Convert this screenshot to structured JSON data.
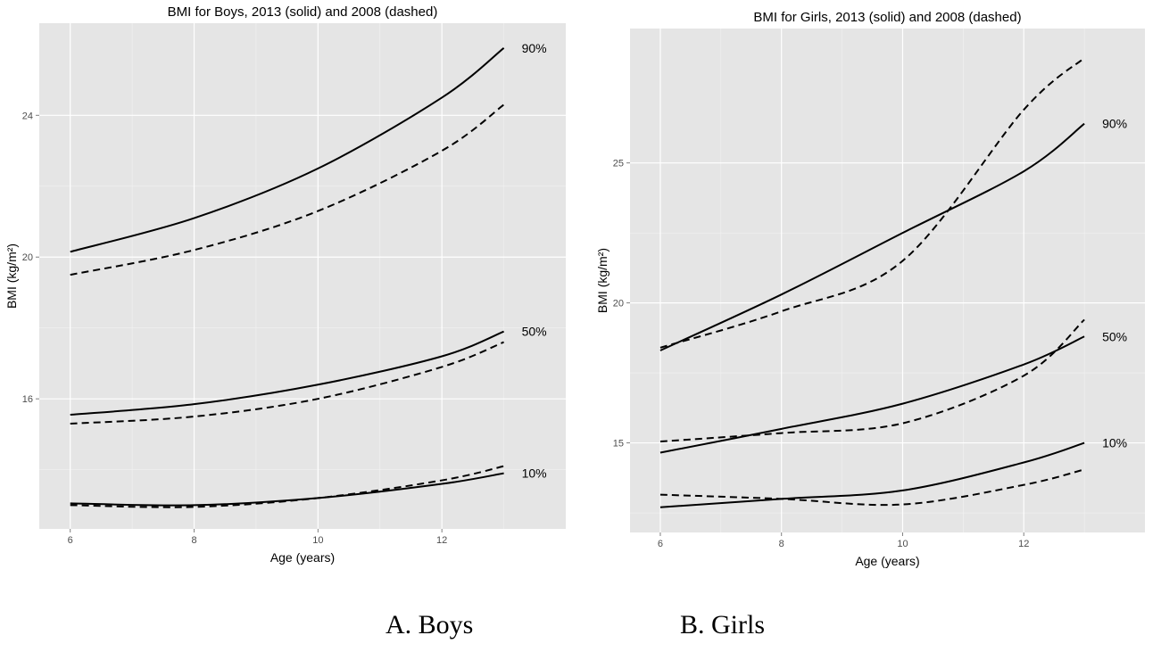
{
  "chart_data": [
    {
      "type": "line",
      "title": "BMI for Boys, 2013 (solid) and 2008 (dashed)",
      "xlabel": "Age (years)",
      "ylabel": "BMI (kg/m²)",
      "xlim": [
        5.5,
        14.0
      ],
      "ylim": [
        12.33,
        26.6
      ],
      "xticks": [
        6,
        8,
        10,
        12
      ],
      "yticks": [
        16,
        20,
        24
      ],
      "grid": true,
      "x": [
        6,
        8,
        10,
        12,
        13
      ],
      "series": [
        {
          "name": "90% 2013",
          "style": "solid",
          "values": [
            20.15,
            21.1,
            22.5,
            24.5,
            25.9
          ],
          "label": "90%"
        },
        {
          "name": "90% 2008",
          "style": "dashed",
          "values": [
            19.5,
            20.2,
            21.3,
            23.0,
            24.3
          ]
        },
        {
          "name": "50% 2013",
          "style": "solid",
          "values": [
            15.55,
            15.85,
            16.4,
            17.2,
            17.9
          ],
          "label": "50%"
        },
        {
          "name": "50% 2008",
          "style": "dashed",
          "values": [
            15.3,
            15.5,
            16.0,
            16.9,
            17.6
          ]
        },
        {
          "name": "10% 2013",
          "style": "solid",
          "values": [
            13.05,
            13.0,
            13.2,
            13.6,
            13.9
          ],
          "label": "10%"
        },
        {
          "name": "10% 2008",
          "style": "dashed",
          "values": [
            13.0,
            12.95,
            13.2,
            13.7,
            14.1
          ]
        }
      ],
      "caption": "A. Boys"
    },
    {
      "type": "line",
      "title": "BMI for Girls, 2013 (solid) and 2008 (dashed)",
      "xlabel": "Age (years)",
      "ylabel": "BMI (kg/m²)",
      "xlim": [
        5.5,
        14.0
      ],
      "ylim": [
        11.8,
        29.8
      ],
      "xticks": [
        6,
        8,
        10,
        12
      ],
      "yticks": [
        15,
        20,
        25
      ],
      "grid": true,
      "x": [
        6,
        8,
        10,
        12,
        13
      ],
      "series": [
        {
          "name": "90% 2013",
          "style": "solid",
          "values": [
            18.3,
            20.3,
            22.5,
            24.7,
            26.4
          ],
          "label": "90%"
        },
        {
          "name": "90% 2008",
          "style": "dashed",
          "values": [
            18.4,
            19.7,
            21.5,
            26.9,
            28.75
          ]
        },
        {
          "name": "50% 2013",
          "style": "solid",
          "values": [
            14.65,
            15.5,
            16.4,
            17.8,
            18.8
          ],
          "label": "50%"
        },
        {
          "name": "50% 2008",
          "style": "dashed",
          "values": [
            15.05,
            15.35,
            15.7,
            17.4,
            19.4
          ]
        },
        {
          "name": "10% 2013",
          "style": "solid",
          "values": [
            12.7,
            13.0,
            13.3,
            14.3,
            15.0
          ],
          "label": "10%"
        },
        {
          "name": "10% 2008",
          "style": "dashed",
          "values": [
            13.15,
            13.0,
            12.8,
            13.5,
            14.05
          ]
        }
      ],
      "caption": "B. Girls"
    }
  ]
}
